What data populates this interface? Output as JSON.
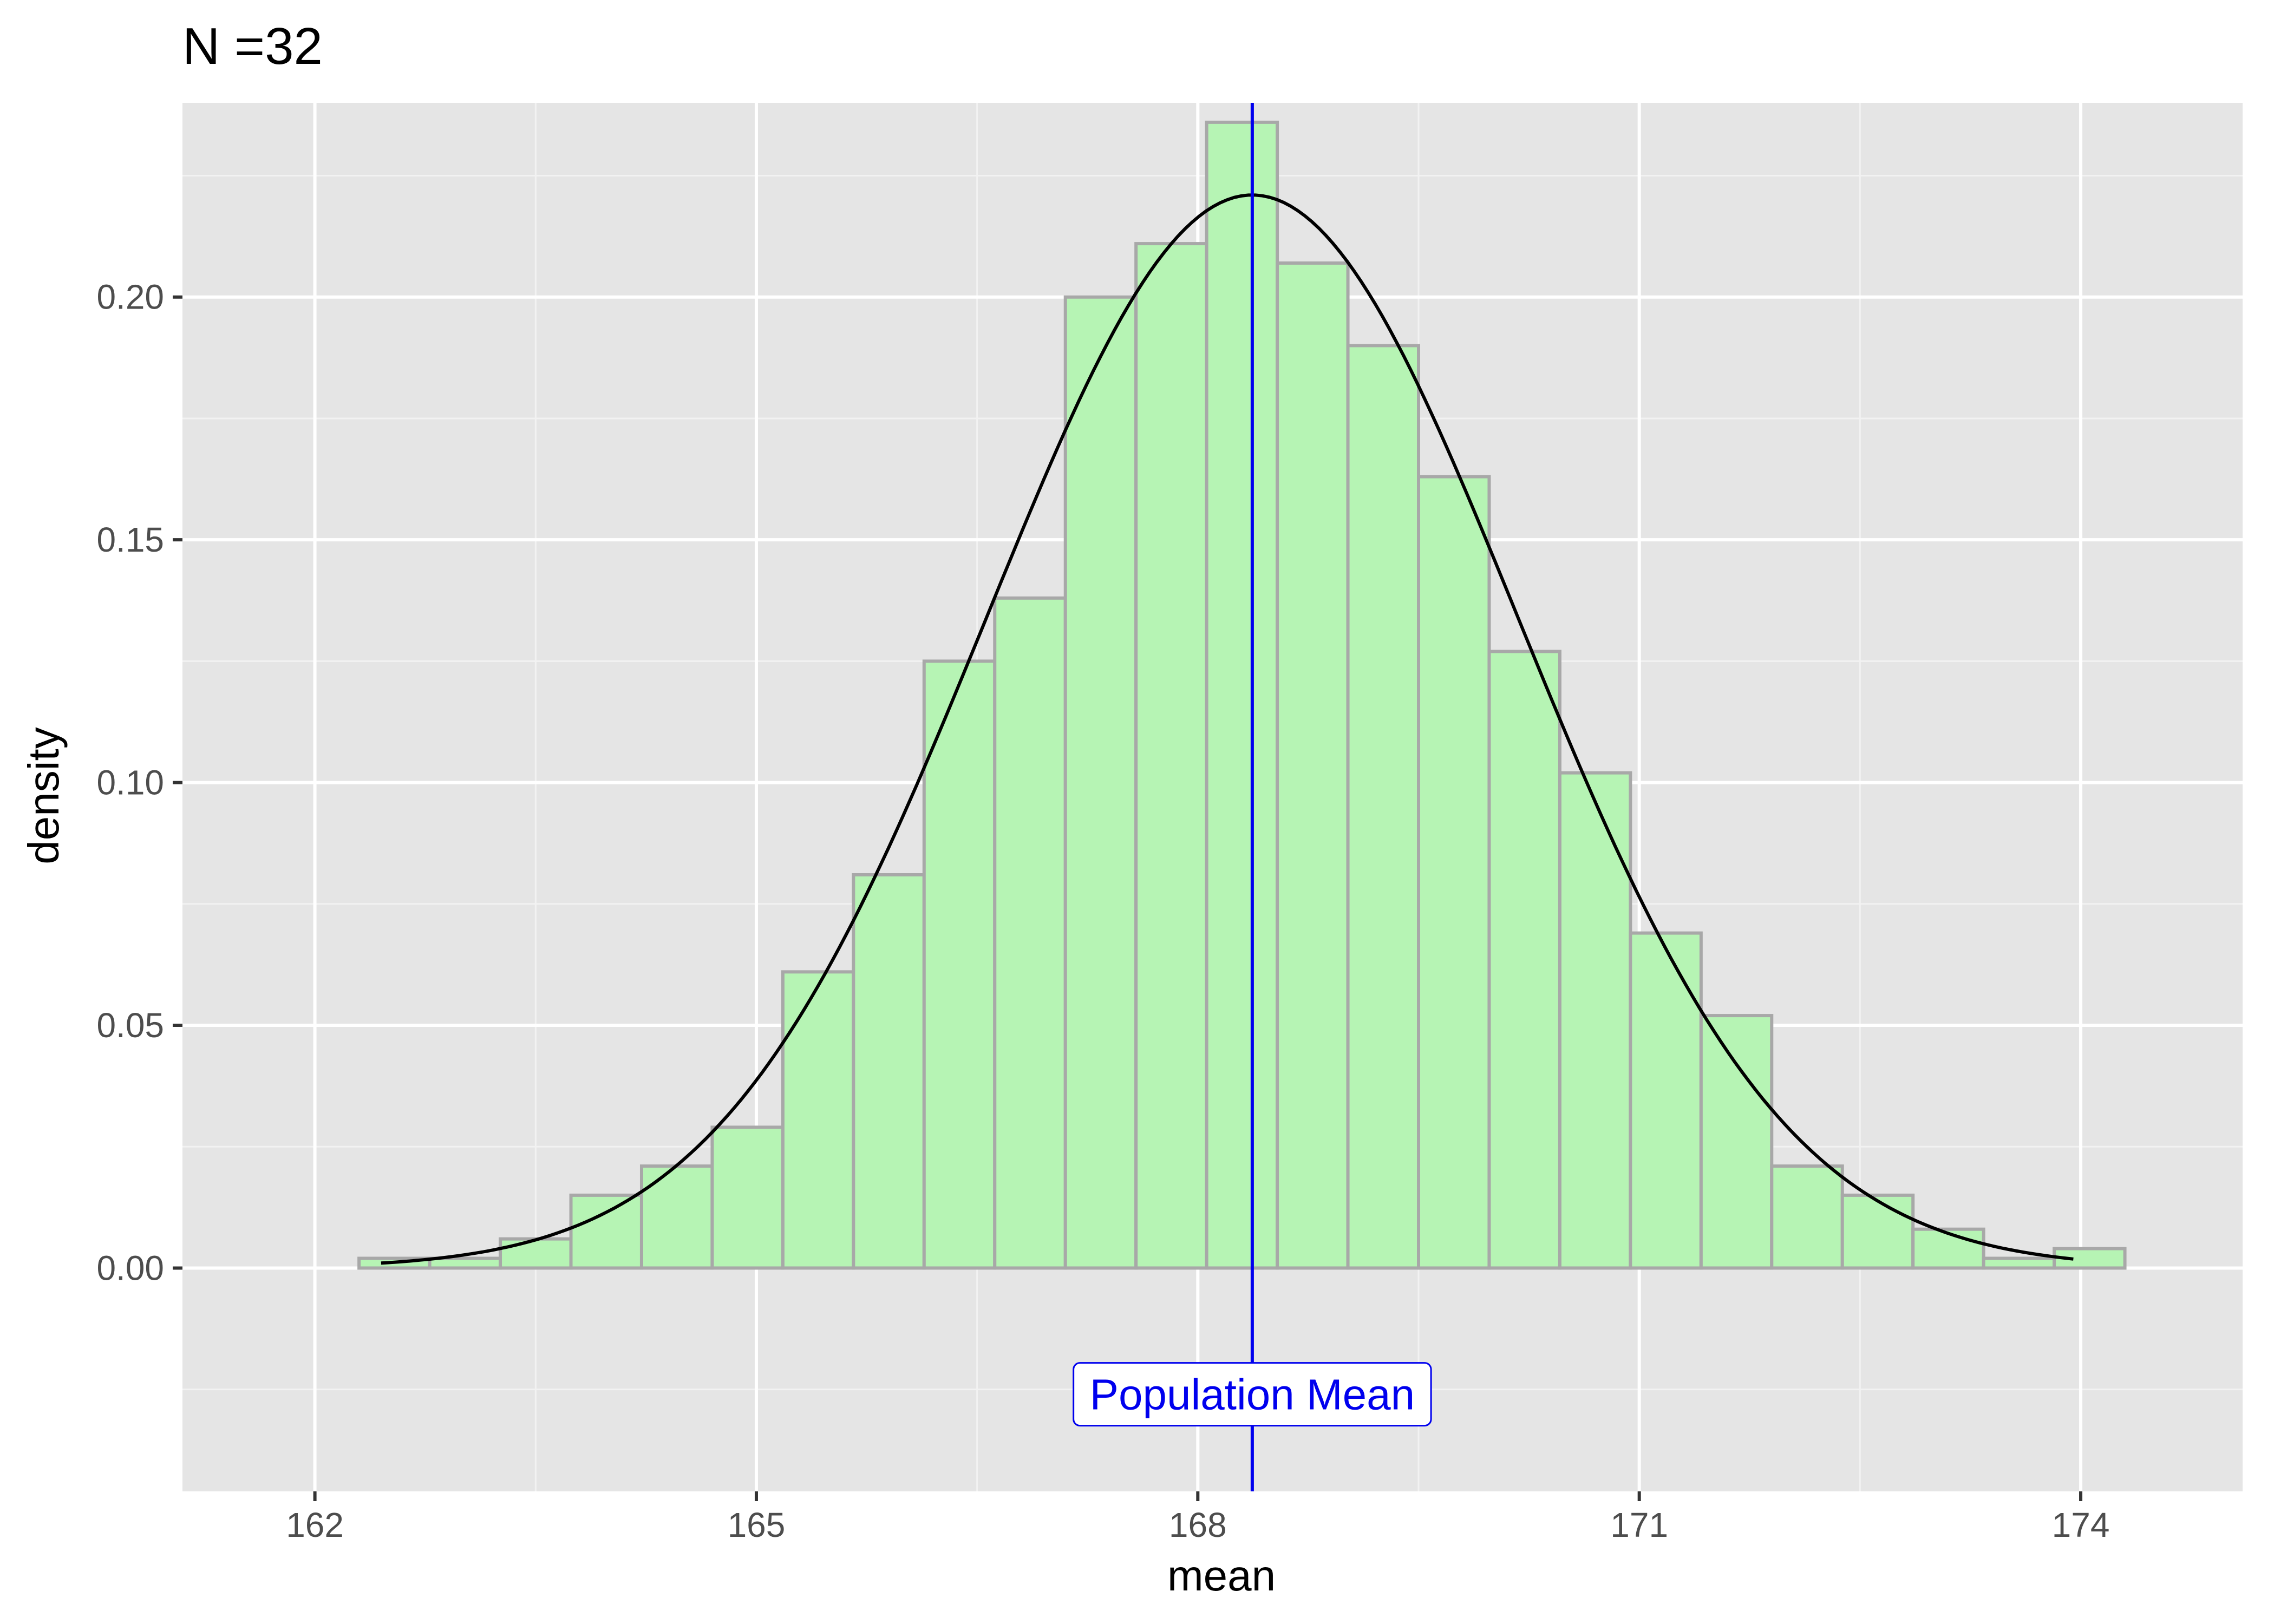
{
  "chart_data": {
    "type": "bar",
    "title": "N =32",
    "xlabel": "mean",
    "ylabel": "density",
    "xlim": [
      161.1,
      175.1
    ],
    "ylim": [
      -0.046,
      0.24
    ],
    "x_ticks": [
      162,
      165,
      168,
      171,
      174
    ],
    "x_tick_labels": [
      "162",
      "165",
      "168",
      "171",
      "174"
    ],
    "y_ticks": [
      0.0,
      0.05,
      0.1,
      0.15,
      0.2
    ],
    "y_tick_labels": [
      "0.00",
      "0.05",
      "0.10",
      "0.15",
      "0.20"
    ],
    "grid": true,
    "bin_width": 0.48,
    "bin_start": 162.3,
    "series": [
      {
        "values": [
          0.002,
          0.002,
          0.006,
          0.015,
          0.021,
          0.029,
          0.061,
          0.081,
          0.125,
          0.138,
          0.2,
          0.211,
          0.236,
          0.207,
          0.19,
          0.163,
          0.127,
          0.102,
          0.069,
          0.052,
          0.021,
          0.015,
          0.008,
          0.002,
          0.004
        ]
      }
    ],
    "normal_curve": {
      "mean": 168.37,
      "sd": 1.805,
      "x_range": [
        162.45,
        173.95
      ]
    },
    "reference_line": {
      "x": 168.37,
      "label": "Population Mean",
      "label_y": -0.026
    },
    "colors": {
      "panel_background": "#e5e5e5",
      "grid_major": "#ffffff",
      "grid_minor": "#f2f2f2",
      "bar_fill": "#b6f4b4",
      "bar_outline": "#a8a8a8",
      "curve": "#000000",
      "reference_line": "#0000ee",
      "tick_mark": "#333333"
    }
  }
}
